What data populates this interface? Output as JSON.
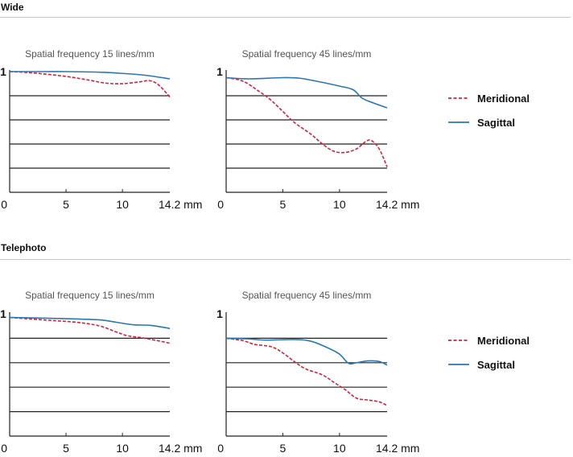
{
  "sections": [
    {
      "title": "Wide"
    },
    {
      "title": "Telephoto"
    }
  ],
  "legend": {
    "items": [
      {
        "label": "Meridional",
        "style": "dashed",
        "color": "#d0233a"
      },
      {
        "label": "Sagittal",
        "style": "solid",
        "color": "#2a77b0"
      }
    ]
  },
  "chart_data": [
    {
      "type": "line",
      "section": "Wide",
      "title": "Spatial frequency 15 lines/mm",
      "xlabel": "mm",
      "x_ticks": [
        "0",
        "5",
        "10",
        "14.2 mm"
      ],
      "y_ticks": [
        "1"
      ],
      "xlim": [
        0,
        14.2
      ],
      "ylim": [
        0,
        1
      ],
      "grid": true,
      "legend": "right",
      "series": [
        {
          "name": "Meridional",
          "x": [
            0,
            2,
            5,
            7,
            8.5,
            10,
            11.5,
            12.4,
            13.2,
            14.2
          ],
          "y": [
            1.0,
            0.99,
            0.96,
            0.93,
            0.905,
            0.9,
            0.915,
            0.925,
            0.89,
            0.79
          ]
        },
        {
          "name": "Sagittal",
          "x": [
            0,
            3,
            5,
            8,
            10,
            12,
            14.2
          ],
          "y": [
            1.0,
            1.0,
            1.0,
            0.995,
            0.985,
            0.97,
            0.94
          ]
        }
      ]
    },
    {
      "type": "line",
      "section": "Wide",
      "title": "Spatial frequency 45 lines/mm",
      "xlabel": "mm",
      "x_ticks": [
        "0",
        "5",
        "10",
        "14.2 mm"
      ],
      "y_ticks": [
        "1"
      ],
      "xlim": [
        0,
        14.2
      ],
      "ylim": [
        0,
        1
      ],
      "grid": true,
      "legend": "right",
      "series": [
        {
          "name": "Meridional",
          "x": [
            0,
            1.5,
            3,
            4,
            5,
            6,
            7.5,
            8.5,
            9.5,
            10.5,
            11.5,
            12.3,
            12.8,
            13.5,
            14.2
          ],
          "y": [
            0.95,
            0.92,
            0.83,
            0.76,
            0.67,
            0.58,
            0.48,
            0.4,
            0.34,
            0.33,
            0.36,
            0.42,
            0.43,
            0.36,
            0.21
          ]
        },
        {
          "name": "Sagittal",
          "x": [
            0,
            2,
            5,
            6.5,
            8,
            10,
            11.2,
            12,
            13,
            14.2
          ],
          "y": [
            0.95,
            0.94,
            0.95,
            0.945,
            0.92,
            0.88,
            0.85,
            0.78,
            0.74,
            0.7
          ]
        }
      ]
    },
    {
      "type": "line",
      "section": "Telephoto",
      "title": "Spatial frequency 15 lines/mm",
      "xlabel": "mm",
      "x_ticks": [
        "0",
        "5",
        "10",
        "14.2 mm"
      ],
      "y_ticks": [
        "1"
      ],
      "xlim": [
        0,
        14.2
      ],
      "ylim": [
        0,
        1
      ],
      "grid": true,
      "legend": "right",
      "series": [
        {
          "name": "Meridional",
          "x": [
            0,
            3,
            6,
            8,
            9.5,
            10.5,
            12,
            14.2
          ],
          "y": [
            0.97,
            0.95,
            0.93,
            0.9,
            0.85,
            0.82,
            0.8,
            0.76
          ]
        },
        {
          "name": "Sagittal",
          "x": [
            0,
            5,
            8,
            9.5,
            11,
            12.5,
            14.2
          ],
          "y": [
            0.97,
            0.96,
            0.95,
            0.93,
            0.91,
            0.905,
            0.88
          ]
        }
      ]
    },
    {
      "type": "line",
      "section": "Telephoto",
      "title": "Spatial frequency 45 lines/mm",
      "xlabel": "mm",
      "x_ticks": [
        "0",
        "5",
        "10",
        "14.2 mm"
      ],
      "y_ticks": [
        "1"
      ],
      "xlim": [
        0,
        14.2
      ],
      "ylim": [
        0,
        1
      ],
      "grid": true,
      "legend": "right",
      "series": [
        {
          "name": "Meridional",
          "x": [
            0,
            1.5,
            2.5,
            4,
            5,
            6,
            7,
            8.5,
            9.5,
            10.5,
            11.5,
            12.5,
            13.5,
            14.2
          ],
          "y": [
            0.8,
            0.78,
            0.75,
            0.73,
            0.68,
            0.61,
            0.55,
            0.5,
            0.44,
            0.38,
            0.31,
            0.295,
            0.28,
            0.25
          ]
        },
        {
          "name": "Sagittal",
          "x": [
            0,
            2,
            3.5,
            6,
            7.5,
            9,
            10,
            10.8,
            11.5,
            12.5,
            13.5,
            14.2
          ],
          "y": [
            0.8,
            0.795,
            0.785,
            0.79,
            0.775,
            0.72,
            0.67,
            0.595,
            0.6,
            0.615,
            0.61,
            0.58
          ]
        }
      ]
    }
  ]
}
